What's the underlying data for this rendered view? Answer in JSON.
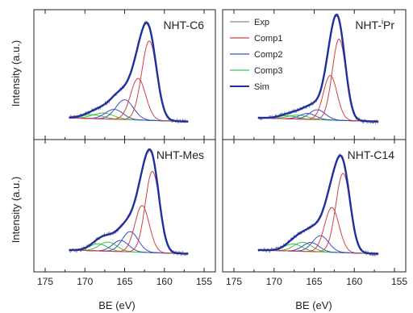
{
  "chart_data": {
    "type": "line",
    "xlabel": "BE (eV)",
    "ylabel": "Intensity (a.u.)",
    "xlim": [
      175,
      155
    ],
    "x_reversed": true,
    "xticks": [
      175,
      170,
      165,
      160,
      155
    ],
    "rightmost_tick_label": "155",
    "legend": {
      "placement": "top-left of top-right panel",
      "entries": [
        {
          "label": "Exp",
          "color": "#8a8a8a"
        },
        {
          "label": "Comp1",
          "color": "#d04040"
        },
        {
          "label": "Comp2",
          "color": "#3a4fc8"
        },
        {
          "label": "Comp3",
          "color": "#3fc23f"
        },
        {
          "label": "Sim",
          "color": "#1f2fa0"
        }
      ]
    },
    "panels": [
      {
        "title": "NHT-C6",
        "components": {
          "Comp1": [
            {
              "center": 161.9,
              "height": 0.8,
              "width": 0.95
            },
            {
              "center": 163.3,
              "height": 0.42,
              "width": 0.95
            }
          ],
          "Comp2": [
            {
              "center": 165.0,
              "height": 0.2,
              "width": 1.1
            },
            {
              "center": 166.3,
              "height": 0.1,
              "width": 1.1
            }
          ],
          "Comp3": [
            {
              "center": 167.7,
              "height": 0.06,
              "width": 1.3
            },
            {
              "center": 169.0,
              "height": 0.04,
              "width": 1.3
            }
          ]
        }
      },
      {
        "title": "NHT-iPr",
        "title_prefix": "NHT-",
        "title_sup": "i",
        "title_suffix": "Pr",
        "components": {
          "Comp1": [
            {
              "center": 161.9,
              "height": 0.82,
              "width": 0.85
            },
            {
              "center": 163.0,
              "height": 0.45,
              "width": 0.85
            }
          ],
          "Comp2": [
            {
              "center": 164.6,
              "height": 0.1,
              "width": 1.0
            },
            {
              "center": 165.8,
              "height": 0.06,
              "width": 1.0
            }
          ],
          "Comp3": [
            {
              "center": 167.0,
              "height": 0.04,
              "width": 1.2
            },
            {
              "center": 168.3,
              "height": 0.03,
              "width": 1.2
            }
          ]
        }
      },
      {
        "title": "NHT-Mes",
        "components": {
          "Comp1": [
            {
              "center": 161.5,
              "height": 0.8,
              "width": 0.9
            },
            {
              "center": 162.8,
              "height": 0.46,
              "width": 0.9
            }
          ],
          "Comp2": [
            {
              "center": 164.3,
              "height": 0.2,
              "width": 1.0
            },
            {
              "center": 165.5,
              "height": 0.11,
              "width": 1.0
            }
          ],
          "Comp3": [
            {
              "center": 167.1,
              "height": 0.09,
              "width": 1.1
            },
            {
              "center": 168.3,
              "height": 0.07,
              "width": 1.1
            }
          ]
        }
      },
      {
        "title": "NHT-C14",
        "components": {
          "Comp1": [
            {
              "center": 161.4,
              "height": 0.78,
              "width": 0.9
            },
            {
              "center": 162.8,
              "height": 0.44,
              "width": 0.9
            }
          ],
          "Comp2": [
            {
              "center": 164.2,
              "height": 0.16,
              "width": 1.0
            },
            {
              "center": 165.4,
              "height": 0.09,
              "width": 1.0
            }
          ],
          "Comp3": [
            {
              "center": 166.4,
              "height": 0.09,
              "width": 1.1
            },
            {
              "center": 167.6,
              "height": 0.07,
              "width": 1.1
            }
          ]
        }
      }
    ]
  }
}
